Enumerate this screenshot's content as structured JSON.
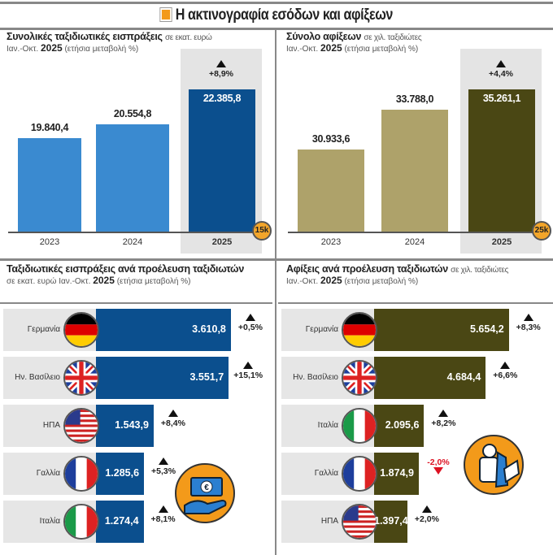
{
  "title": "Η ακτινογραφία εσόδων και αφίξεων",
  "panels": {
    "receipts_total": {
      "title": "Συνολικές ταξιδιωτικές εισπράξεις",
      "unit": "σε εκατ. ευρώ",
      "period": "Ιαν.-Οκτ.",
      "year": "2025",
      "note": "(ετήσια μεταβολή %)"
    },
    "arrivals_total": {
      "title": "Σύνολο αφίξεων",
      "unit": "σε χιλ. ταξιδιώτες",
      "period": "Ιαν.-Οκτ.",
      "year": "2025",
      "note": "(ετήσια μεταβολή %)"
    },
    "receipts_country": {
      "title": "Ταξιδιωτικές εισπράξεις ανά προέλευση ταξιδιωτών",
      "unit": "σε εκατ. ευρώ Ιαν.-Οκτ.",
      "year": "2025",
      "note": "(ετήσια μεταβολή %)"
    },
    "arrivals_country": {
      "title": "Αφίξεις ανά προέλευση ταξιδιωτών",
      "unit": "σε χιλ. ταξιδιώτες",
      "period": "Ιαν.-Οκτ.",
      "year": "2025",
      "note": "(ετήσια μεταβολή %)"
    }
  },
  "chart_data": [
    {
      "type": "bar",
      "title": "Συνολικές ταξιδιωτικές εισπράξεις",
      "categories": [
        "2023",
        "2024",
        "2025"
      ],
      "values": [
        19840.4,
        20554.8,
        22385.8
      ],
      "labels": [
        "19.840,4",
        "20.554,8",
        "22.385,8"
      ],
      "change_label": "+8,9%",
      "change": 8.9,
      "ylim": [
        15000,
        22385.8
      ],
      "baseline_label": "15k",
      "colors": [
        "#3a8ad0",
        "#3a8ad0",
        "#0b4f8e"
      ]
    },
    {
      "type": "bar",
      "title": "Σύνολο αφίξεων",
      "categories": [
        "2023",
        "2024",
        "2025"
      ],
      "values": [
        30933.6,
        33788.0,
        35261.1
      ],
      "labels": [
        "30.933,6",
        "33.788,0",
        "35.261,1"
      ],
      "change_label": "+4,4%",
      "change": 4.4,
      "ylim": [
        25000,
        35261.1
      ],
      "baseline_label": "25k",
      "colors": [
        "#aea26a",
        "#aea26a",
        "#4a4714"
      ]
    },
    {
      "type": "bar",
      "orientation": "horizontal",
      "title": "Ταξιδιωτικές εισπράξεις ανά προέλευση ταξιδιωτών",
      "categories": [
        "Γερμανία",
        "Ην. Βασίλειο",
        "ΗΠΑ",
        "Γαλλία",
        "Ιταλία"
      ],
      "flags": [
        "de",
        "uk",
        "us",
        "fr",
        "it"
      ],
      "values": [
        3610.8,
        3551.7,
        1543.9,
        1285.6,
        1274.4
      ],
      "labels": [
        "3.610,8",
        "3.551,7",
        "1.543,9",
        "1.285,6",
        "1.274,4"
      ],
      "changes": [
        0.5,
        15.1,
        8.4,
        5.3,
        8.1
      ],
      "change_labels": [
        "+0,5%",
        "+15,1%",
        "+8,4%",
        "+5,3%",
        "+8,1%"
      ],
      "color": "#0b4f8e"
    },
    {
      "type": "bar",
      "orientation": "horizontal",
      "title": "Αφίξεις ανά προέλευση ταξιδιωτών",
      "categories": [
        "Γερμανία",
        "Ην. Βασίλειο",
        "Ιταλία",
        "Γαλλία",
        "ΗΠΑ"
      ],
      "flags": [
        "de",
        "uk",
        "it",
        "fr",
        "us"
      ],
      "values": [
        5654.2,
        4684.4,
        2095.6,
        1874.9,
        1397.4
      ],
      "labels": [
        "5.654,2",
        "4.684,4",
        "2.095,6",
        "1.874,9",
        "1.397,4"
      ],
      "changes": [
        8.3,
        6.6,
        8.2,
        -2.0,
        2.0
      ],
      "change_labels": [
        "+8,3%",
        "+6,6%",
        "+8,2%",
        "-2,0%",
        "+2,0%"
      ],
      "color": "#4a4714"
    }
  ]
}
